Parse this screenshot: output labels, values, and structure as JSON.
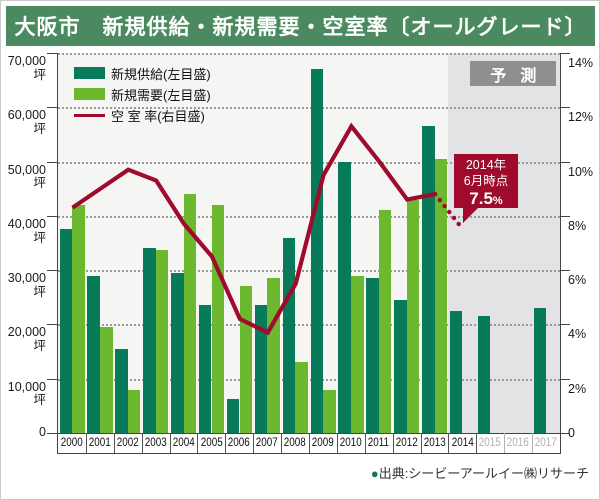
{
  "title": "大阪市　新規供給・新規需要・空室率〔オールグレード〕",
  "banner_color": "#4b8a60",
  "legend": [
    {
      "label": "新規供給(左目盛)",
      "type": "bar",
      "color": "#077a5a"
    },
    {
      "label": "新規需要(左目盛)",
      "type": "bar",
      "color": "#6cb82f"
    },
    {
      "label": "空 室 率(右目盛)",
      "type": "line",
      "color": "#9e0b2d"
    }
  ],
  "forecast_label": "予測",
  "forecast_box_color": "#8f8f8f",
  "forecast_band_color": "#e3e3e5",
  "callout": {
    "line1": "2014年",
    "line2": "6月時点",
    "value": "7.5",
    "unit": "%",
    "color": "#9e0b2d"
  },
  "source": {
    "bullet": "●",
    "bullet_color": "#0a7a5a",
    "text": "出典:シービーアールイー㈱リサーチ"
  },
  "left_axis": {
    "unit": "坪",
    "ticks": [
      "70,000",
      "60,000",
      "50,000",
      "40,000",
      "30,000",
      "20,000",
      "10,000",
      "0"
    ]
  },
  "right_axis": {
    "ticks": [
      "14%",
      "12%",
      "10%",
      "8%",
      "6%",
      "4%",
      "2%",
      "0"
    ]
  },
  "chart_data": {
    "type": "bar+line",
    "categories": [
      2000,
      2001,
      2002,
      2003,
      2004,
      2005,
      2006,
      2007,
      2008,
      2009,
      2010,
      2011,
      2012,
      2013,
      2014,
      2015,
      2016,
      2017
    ],
    "series": [
      {
        "name": "新規供給(左目盛)",
        "type": "bar",
        "axis": "left",
        "unit": "坪",
        "color": "#077a5a",
        "values": [
          37500,
          29000,
          15500,
          34000,
          29500,
          23500,
          6300,
          23500,
          36000,
          67000,
          50000,
          28500,
          24500,
          56500,
          22500,
          21500,
          null,
          23000
        ]
      },
      {
        "name": "新規需要(左目盛)",
        "type": "bar",
        "axis": "left",
        "unit": "坪",
        "color": "#6cb82f",
        "values": [
          42000,
          19500,
          8000,
          33800,
          44000,
          42000,
          27000,
          28500,
          13000,
          8000,
          29000,
          41000,
          43000,
          50500,
          null,
          null,
          null,
          null
        ]
      },
      {
        "name": "空室率(右目盛)",
        "type": "line",
        "axis": "right",
        "unit": "%",
        "color": "#9e0b2d",
        "values": [
          8.3,
          9.0,
          9.7,
          9.3,
          7.7,
          6.5,
          4.2,
          3.7,
          5.5,
          9.5,
          11.3,
          10.0,
          8.6,
          8.8,
          7.5,
          null,
          null,
          null
        ],
        "dotted_from_category": 2013
      }
    ],
    "left_ylim": [
      0,
      70000
    ],
    "right_ylim": [
      0,
      14
    ],
    "forecast_start_category": 2014,
    "gray_label_categories": [
      2015,
      2016,
      2017
    ],
    "grid": "dotted-horizontal",
    "legend_position": "top-left-inside"
  }
}
